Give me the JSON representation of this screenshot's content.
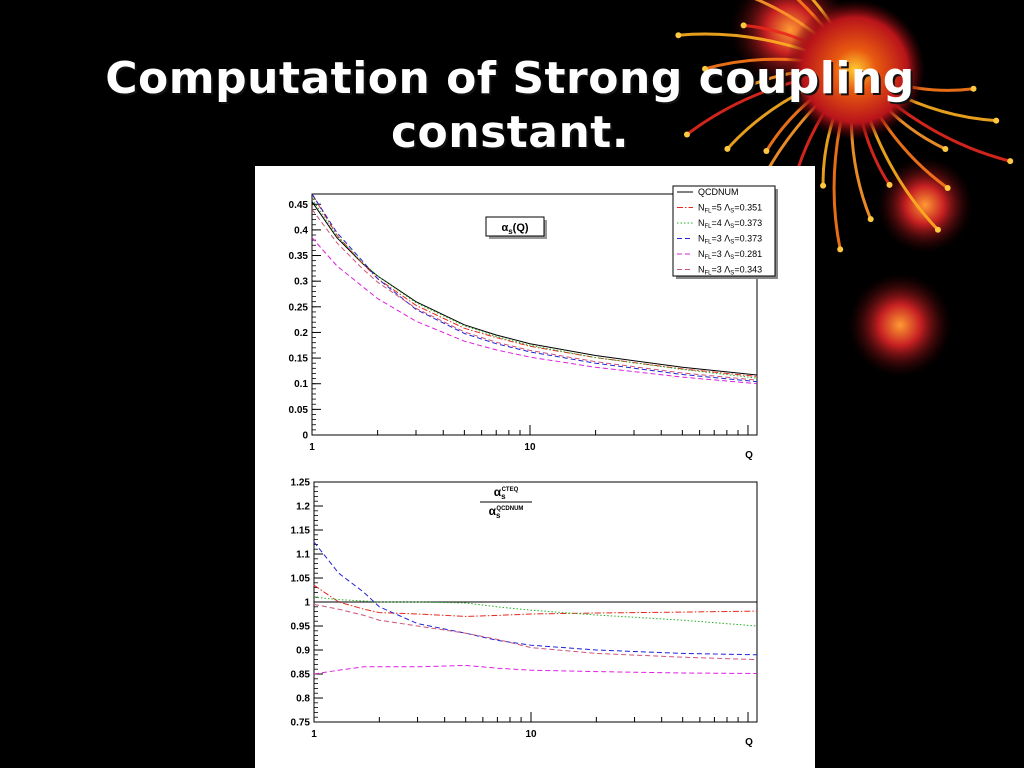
{
  "slide": {
    "title": "Computation of Strong coupling constant."
  },
  "colors": {
    "background": "#000000",
    "title": "#ffffff",
    "series": [
      "#000000",
      "#e8281e",
      "#22b022",
      "#2222d4",
      "#dd22dd",
      "#cc5577"
    ]
  },
  "decoration": {
    "icon": "red-orange-glowing-orb-burst"
  },
  "chart_data": [
    {
      "type": "line",
      "title": "αs(Q)",
      "title_parts": {
        "symbol": "α",
        "sub": "s",
        "suffix": "(Q)"
      },
      "xlabel": "Q",
      "x_scale": "log",
      "xlim": [
        1,
        110
      ],
      "ylim": [
        0,
        0.47
      ],
      "x_tick_labels": [
        {
          "value": 1,
          "label": "1"
        },
        {
          "value": 10,
          "label": "10"
        }
      ],
      "y_ticks": [
        {
          "value": 0,
          "label": "0"
        },
        {
          "value": 0.05,
          "label": "0.05"
        },
        {
          "value": 0.1,
          "label": "0.1"
        },
        {
          "value": 0.15,
          "label": "0.15"
        },
        {
          "value": 0.2,
          "label": "0.2"
        },
        {
          "value": 0.25,
          "label": "0.25"
        },
        {
          "value": 0.3,
          "label": "0.3"
        },
        {
          "value": 0.35,
          "label": "0.35"
        },
        {
          "value": 0.4,
          "label": "0.4"
        },
        {
          "value": 0.45,
          "label": "0.45"
        }
      ],
      "legend_position": "top-right",
      "x": [
        1,
        1.3,
        1.7,
        2,
        3,
        5,
        7,
        10,
        20,
        50,
        110
      ],
      "series": [
        {
          "label": {
            "main": "QCDNUM",
            "n": "",
            "lam": ""
          },
          "dash": "solid",
          "values": [
            0.455,
            0.385,
            0.335,
            0.31,
            0.26,
            0.215,
            0.195,
            0.178,
            0.155,
            0.132,
            0.117
          ]
        },
        {
          "label": {
            "main": "",
            "n": "5",
            "lam": "0.351"
          },
          "dash": "dashdot",
          "values": [
            0.47,
            0.39,
            0.335,
            0.305,
            0.253,
            0.208,
            0.19,
            0.173,
            0.151,
            0.129,
            0.114
          ]
        },
        {
          "label": {
            "main": "",
            "n": "4",
            "lam": "0.373"
          },
          "dash": "dotted",
          "values": [
            0.46,
            0.388,
            0.337,
            0.31,
            0.258,
            0.213,
            0.192,
            0.175,
            0.151,
            0.128,
            0.111
          ]
        },
        {
          "label": {
            "main": "",
            "n": "3",
            "lam": "0.373"
          },
          "dash": "dashed",
          "values": [
            0.47,
            0.395,
            0.34,
            0.305,
            0.245,
            0.198,
            0.178,
            0.162,
            0.14,
            0.118,
            0.104
          ]
        },
        {
          "label": {
            "main": "",
            "n": "3",
            "lam": "0.281"
          },
          "dash": "dashed",
          "values": [
            0.385,
            0.33,
            0.29,
            0.266,
            0.222,
            0.183,
            0.166,
            0.152,
            0.132,
            0.113,
            0.1
          ]
        },
        {
          "label": {
            "main": "",
            "n": "3",
            "lam": "0.343"
          },
          "dash": "dashed",
          "values": [
            0.44,
            0.375,
            0.325,
            0.298,
            0.247,
            0.201,
            0.181,
            0.165,
            0.143,
            0.121,
            0.107
          ]
        }
      ]
    },
    {
      "type": "line",
      "title": "αs CTEQ / αs QCDNUM",
      "title_parts": {
        "symbol": "α",
        "sub": "s",
        "num_sup": "CTEQ",
        "den_sup": "QCDNUM"
      },
      "xlabel": "Q",
      "x_scale": "log",
      "xlim": [
        1,
        110
      ],
      "ylim": [
        0.75,
        1.25
      ],
      "x_tick_labels": [
        {
          "value": 1,
          "label": "1"
        },
        {
          "value": 10,
          "label": "10"
        }
      ],
      "y_ticks": [
        {
          "value": 0.75,
          "label": "0.75"
        },
        {
          "value": 0.8,
          "label": "0.8"
        },
        {
          "value": 0.85,
          "label": "0.85"
        },
        {
          "value": 0.9,
          "label": "0.9"
        },
        {
          "value": 0.95,
          "label": "0.95"
        },
        {
          "value": 1,
          "label": "1"
        },
        {
          "value": 1.05,
          "label": "1.05"
        },
        {
          "value": 1.1,
          "label": "1.1"
        },
        {
          "value": 1.15,
          "label": "1.15"
        },
        {
          "value": 1.2,
          "label": "1.2"
        },
        {
          "value": 1.25,
          "label": "1.25"
        }
      ],
      "x": [
        1,
        1.3,
        1.7,
        2,
        3,
        5,
        7,
        10,
        20,
        50,
        110
      ],
      "series": [
        {
          "dash": "solid",
          "values": [
            1,
            1,
            1,
            1,
            1,
            1,
            1,
            1,
            1,
            1,
            1
          ]
        },
        {
          "dash": "dashdot",
          "values": [
            1.035,
            1.0,
            0.985,
            0.978,
            0.975,
            0.97,
            0.972,
            0.975,
            0.977,
            0.979,
            0.981
          ]
        },
        {
          "dash": "dotted",
          "values": [
            1.01,
            1.005,
            1.002,
            1.0,
            1.0,
            0.998,
            0.99,
            0.983,
            0.973,
            0.962,
            0.95
          ]
        },
        {
          "dash": "dashed",
          "values": [
            1.125,
            1.06,
            1.02,
            0.99,
            0.955,
            0.935,
            0.92,
            0.91,
            0.9,
            0.893,
            0.89
          ]
        },
        {
          "dash": "dashed",
          "values": [
            0.85,
            0.858,
            0.865,
            0.865,
            0.865,
            0.868,
            0.862,
            0.858,
            0.855,
            0.852,
            0.851
          ]
        },
        {
          "dash": "dashed",
          "values": [
            0.995,
            0.985,
            0.972,
            0.962,
            0.95,
            0.935,
            0.922,
            0.905,
            0.893,
            0.885,
            0.88
          ]
        }
      ]
    }
  ]
}
